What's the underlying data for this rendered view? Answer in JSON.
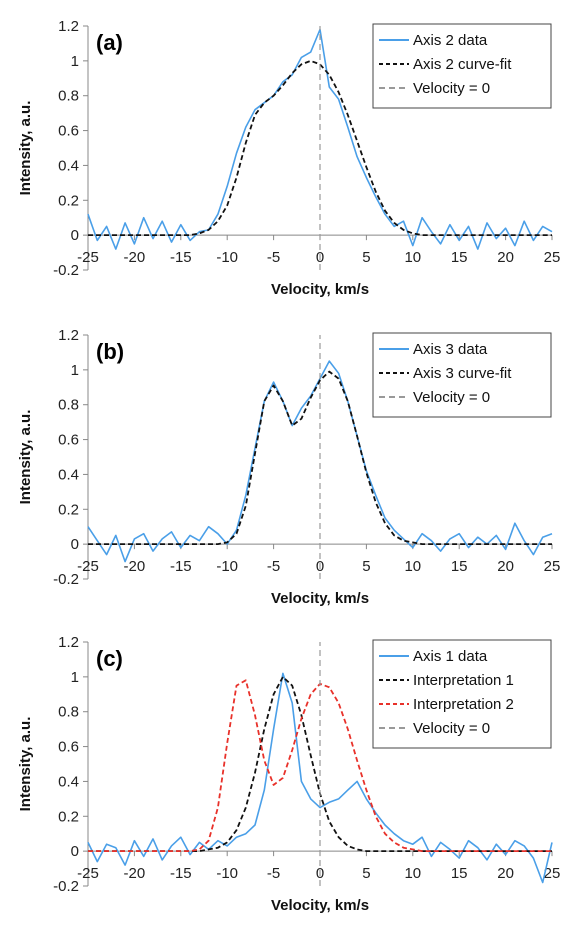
{
  "chart_data": [
    {
      "type": "line",
      "panel_label": "(a)",
      "xlabel": "Velocity, km/s",
      "ylabel": "Intensity, a.u.",
      "xlim": [
        -25,
        25
      ],
      "ylim": [
        -0.2,
        1.2
      ],
      "xticks": [
        -25,
        -20,
        -15,
        -10,
        -5,
        0,
        5,
        10,
        15,
        20,
        25
      ],
      "yticks": [
        -0.2,
        0,
        0.2,
        0.4,
        0.6,
        0.8,
        1,
        1.2
      ],
      "legend_position": "top-right",
      "grid": false,
      "series": [
        {
          "name": "Axis 2 data",
          "style": "solid",
          "color": "#4a9fe8",
          "x": [
            -25,
            -24,
            -23,
            -22,
            -21,
            -20,
            -19,
            -18,
            -17,
            -16,
            -15,
            -14,
            -13,
            -12,
            -11,
            -10,
            -9,
            -8,
            -7,
            -6,
            -5,
            -4,
            -3,
            -2,
            -1,
            0,
            1,
            2,
            3,
            4,
            5,
            6,
            7,
            8,
            9,
            10,
            11,
            12,
            13,
            14,
            15,
            16,
            17,
            18,
            19,
            20,
            21,
            22,
            23,
            24,
            25
          ],
          "y": [
            0.12,
            -0.03,
            0.05,
            -0.08,
            0.07,
            -0.05,
            0.1,
            -0.02,
            0.08,
            -0.04,
            0.06,
            -0.03,
            0.02,
            0.03,
            0.12,
            0.28,
            0.47,
            0.62,
            0.72,
            0.76,
            0.8,
            0.88,
            0.92,
            1.02,
            1.05,
            1.18,
            0.85,
            0.78,
            0.62,
            0.45,
            0.33,
            0.22,
            0.12,
            0.05,
            0.08,
            -0.06,
            0.1,
            0.02,
            -0.05,
            0.06,
            -0.03,
            0.05,
            -0.08,
            0.07,
            -0.02,
            0.04,
            -0.06,
            0.08,
            -0.03,
            0.05,
            0.02
          ]
        },
        {
          "name": "Axis 2 curve-fit",
          "style": "dashed",
          "color": "#111111",
          "x": [
            -25,
            -24,
            -23,
            -22,
            -21,
            -20,
            -19,
            -18,
            -17,
            -16,
            -15,
            -14,
            -13,
            -12,
            -11,
            -10,
            -9,
            -8,
            -7,
            -6,
            -5,
            -4,
            -3,
            -2,
            -1,
            0,
            1,
            2,
            3,
            4,
            5,
            6,
            7,
            8,
            9,
            10,
            11,
            12,
            13,
            14,
            15,
            16,
            17,
            18,
            19,
            20,
            21,
            22,
            23,
            24,
            25
          ],
          "y": [
            0,
            0,
            0,
            0,
            0,
            0,
            0,
            0,
            0,
            0,
            0,
            0,
            0.01,
            0.03,
            0.08,
            0.17,
            0.33,
            0.53,
            0.69,
            0.76,
            0.8,
            0.86,
            0.93,
            0.98,
            1.0,
            0.98,
            0.92,
            0.82,
            0.69,
            0.54,
            0.39,
            0.25,
            0.14,
            0.07,
            0.03,
            0.01,
            0,
            0,
            0,
            0,
            0,
            0,
            0,
            0,
            0,
            0,
            0,
            0,
            0,
            0,
            0
          ]
        },
        {
          "name": "Velocity = 0",
          "style": "dashed",
          "color": "#999999",
          "x": [
            0,
            0
          ],
          "y": [
            -0.2,
            1.2
          ]
        }
      ]
    },
    {
      "type": "line",
      "panel_label": "(b)",
      "xlabel": "Velocity, km/s",
      "ylabel": "Intensity, a.u.",
      "xlim": [
        -25,
        25
      ],
      "ylim": [
        -0.2,
        1.2
      ],
      "xticks": [
        -25,
        -20,
        -15,
        -10,
        -5,
        0,
        5,
        10,
        15,
        20,
        25
      ],
      "yticks": [
        -0.2,
        0,
        0.2,
        0.4,
        0.6,
        0.8,
        1,
        1.2
      ],
      "legend_position": "top-right",
      "grid": false,
      "series": [
        {
          "name": "Axis 3 data",
          "style": "solid",
          "color": "#4a9fe8",
          "x": [
            -25,
            -24,
            -23,
            -22,
            -21,
            -20,
            -19,
            -18,
            -17,
            -16,
            -15,
            -14,
            -13,
            -12,
            -11,
            -10,
            -9,
            -8,
            -7,
            -6,
            -5,
            -4,
            -3,
            -2,
            -1,
            0,
            1,
            2,
            3,
            4,
            5,
            6,
            7,
            8,
            9,
            10,
            11,
            12,
            13,
            14,
            15,
            16,
            17,
            18,
            19,
            20,
            21,
            22,
            23,
            24,
            25
          ],
          "y": [
            0.1,
            0.02,
            -0.06,
            0.05,
            -0.1,
            0.03,
            0.06,
            -0.04,
            0.03,
            0.07,
            -0.02,
            0.05,
            0.02,
            0.1,
            0.06,
            0.0,
            0.08,
            0.28,
            0.55,
            0.82,
            0.93,
            0.82,
            0.68,
            0.78,
            0.85,
            0.95,
            1.05,
            0.98,
            0.82,
            0.62,
            0.42,
            0.28,
            0.15,
            0.08,
            0.03,
            -0.02,
            0.06,
            0.02,
            -0.04,
            0.03,
            0.06,
            -0.02,
            0.04,
            0.0,
            0.05,
            -0.03,
            0.12,
            0.02,
            -0.06,
            0.04,
            0.06
          ]
        },
        {
          "name": "Axis 3 curve-fit",
          "style": "dashed",
          "color": "#111111",
          "x": [
            -25,
            -24,
            -23,
            -22,
            -21,
            -20,
            -19,
            -18,
            -17,
            -16,
            -15,
            -14,
            -13,
            -12,
            -11,
            -10,
            -9,
            -8,
            -7,
            -6,
            -5,
            -4,
            -3,
            -2,
            -1,
            0,
            1,
            2,
            3,
            4,
            5,
            6,
            7,
            8,
            9,
            10,
            11,
            12,
            13,
            14,
            15,
            16,
            17,
            18,
            19,
            20,
            21,
            22,
            23,
            24,
            25
          ],
          "y": [
            0,
            0,
            0,
            0,
            0,
            0,
            0,
            0,
            0,
            0,
            0,
            0,
            0,
            0,
            0,
            0.01,
            0.06,
            0.22,
            0.52,
            0.82,
            0.91,
            0.82,
            0.68,
            0.72,
            0.84,
            0.94,
            0.99,
            0.95,
            0.82,
            0.62,
            0.41,
            0.24,
            0.12,
            0.05,
            0.02,
            0.01,
            0,
            0,
            0,
            0,
            0,
            0,
            0,
            0,
            0,
            0,
            0,
            0,
            0,
            0,
            0
          ]
        },
        {
          "name": "Velocity = 0",
          "style": "dashed",
          "color": "#999999",
          "x": [
            0,
            0
          ],
          "y": [
            -0.2,
            1.2
          ]
        }
      ]
    },
    {
      "type": "line",
      "panel_label": "(c)",
      "xlabel": "Velocity, km/s",
      "ylabel": "Intensity, a.u.",
      "xlim": [
        -25,
        25
      ],
      "ylim": [
        -0.2,
        1.2
      ],
      "xticks": [
        -25,
        -20,
        -15,
        -10,
        -5,
        0,
        5,
        10,
        15,
        20,
        25
      ],
      "yticks": [
        -0.2,
        0,
        0.2,
        0.4,
        0.6,
        0.8,
        1,
        1.2
      ],
      "legend_position": "top-right",
      "grid": false,
      "series": [
        {
          "name": "Axis 1 data",
          "style": "solid",
          "color": "#4a9fe8",
          "x": [
            -25,
            -24,
            -23,
            -22,
            -21,
            -20,
            -19,
            -18,
            -17,
            -16,
            -15,
            -14,
            -13,
            -12,
            -11,
            -10,
            -9,
            -8,
            -7,
            -6,
            -5,
            -4,
            -3,
            -2,
            -1,
            0,
            1,
            2,
            3,
            4,
            5,
            6,
            7,
            8,
            9,
            10,
            11,
            12,
            13,
            14,
            15,
            16,
            17,
            18,
            19,
            20,
            21,
            22,
            23,
            24,
            25
          ],
          "y": [
            0.05,
            -0.06,
            0.04,
            0.02,
            -0.08,
            0.06,
            -0.03,
            0.07,
            -0.05,
            0.03,
            0.08,
            -0.02,
            0.05,
            0.01,
            0.06,
            0.03,
            0.08,
            0.1,
            0.15,
            0.35,
            0.7,
            1.02,
            0.85,
            0.4,
            0.3,
            0.25,
            0.28,
            0.3,
            0.35,
            0.4,
            0.3,
            0.22,
            0.15,
            0.1,
            0.06,
            0.04,
            0.08,
            -0.03,
            0.05,
            0.01,
            -0.04,
            0.06,
            0.02,
            -0.05,
            0.04,
            -0.02,
            0.06,
            0.03,
            -0.04,
            -0.18,
            0.05
          ]
        },
        {
          "name": "Interpretation 1",
          "style": "dashed",
          "color": "#111111",
          "x": [
            -25,
            -24,
            -23,
            -22,
            -21,
            -20,
            -19,
            -18,
            -17,
            -16,
            -15,
            -14,
            -13,
            -12,
            -11,
            -10,
            -9,
            -8,
            -7,
            -6,
            -5,
            -4,
            -3,
            -2,
            -1,
            0,
            1,
            2,
            3,
            4,
            5,
            6,
            7,
            8,
            9,
            10,
            11,
            12,
            13,
            14,
            15,
            16,
            17,
            18,
            19,
            20,
            21,
            22,
            23,
            24,
            25
          ],
          "y": [
            0,
            0,
            0,
            0,
            0,
            0,
            0,
            0,
            0,
            0,
            0,
            0,
            0,
            0.01,
            0.02,
            0.05,
            0.12,
            0.25,
            0.45,
            0.7,
            0.9,
            1.0,
            0.95,
            0.78,
            0.55,
            0.33,
            0.17,
            0.08,
            0.03,
            0.01,
            0,
            0,
            0,
            0,
            0,
            0,
            0,
            0,
            0,
            0,
            0,
            0,
            0,
            0,
            0,
            0,
            0,
            0,
            0,
            0,
            0
          ]
        },
        {
          "name": "Interpretation 2",
          "style": "dashed",
          "color": "#e8312a",
          "x": [
            -25,
            -24,
            -23,
            -22,
            -21,
            -20,
            -19,
            -18,
            -17,
            -16,
            -15,
            -14,
            -13,
            -12,
            -11,
            -10,
            -9,
            -8,
            -7,
            -6,
            -5,
            -4,
            -3,
            -2,
            -1,
            0,
            1,
            2,
            3,
            4,
            5,
            6,
            7,
            8,
            9,
            10,
            11,
            12,
            13,
            14,
            15,
            16,
            17,
            18,
            19,
            20,
            21,
            22,
            23,
            24,
            25
          ],
          "y": [
            0,
            0,
            0,
            0,
            0,
            0,
            0,
            0,
            0,
            0,
            0,
            0,
            0.01,
            0.06,
            0.25,
            0.62,
            0.95,
            0.98,
            0.78,
            0.52,
            0.38,
            0.42,
            0.58,
            0.76,
            0.9,
            0.96,
            0.94,
            0.85,
            0.7,
            0.52,
            0.35,
            0.2,
            0.1,
            0.05,
            0.02,
            0.01,
            0,
            0,
            0,
            0,
            0,
            0,
            0,
            0,
            0,
            0,
            0,
            0,
            0,
            0,
            0
          ]
        },
        {
          "name": "Velocity = 0",
          "style": "dashed",
          "color": "#999999",
          "x": [
            0,
            0
          ],
          "y": [
            -0.2,
            1.2
          ]
        }
      ]
    }
  ]
}
